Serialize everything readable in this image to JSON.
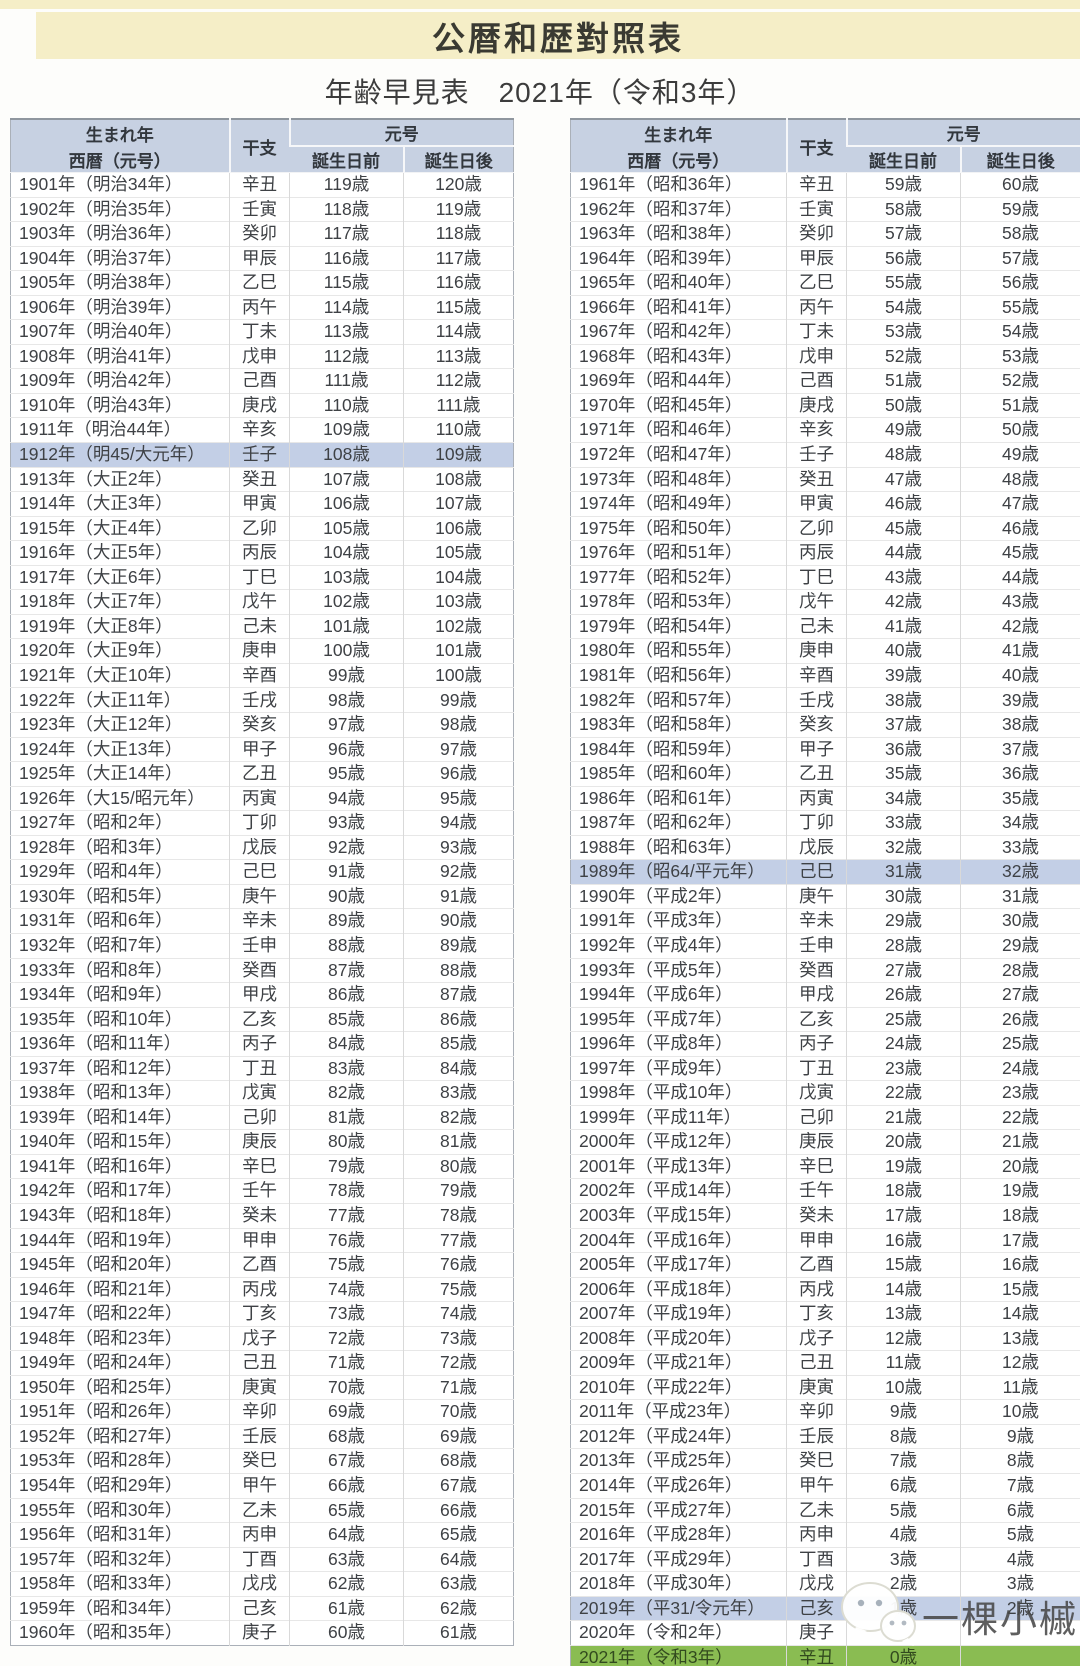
{
  "page": {
    "title": "公暦和歴對照表",
    "subtitle": "年齢早見表　2021年（令和3年）"
  },
  "headers": {
    "birth_year": "生まれ年",
    "seireki_gengo": "西暦（元号）",
    "eto": "干支",
    "gengo": "元号",
    "before_birthday": "誕生日前",
    "after_birthday": "誕生日後"
  },
  "colors": {
    "banner_cream": "#f5eec7",
    "header_blue": "#c7d1e2",
    "highlight_blue": "#c3cfe6",
    "highlight_green": "#8abc52"
  },
  "watermark": {
    "icon": "wechat-icon",
    "text": "一棵小槭"
  },
  "left_rows": [
    [
      "1901年（明治34年）",
      "辛丑",
      "119歳",
      "120歳"
    ],
    [
      "1902年（明治35年）",
      "壬寅",
      "118歳",
      "119歳"
    ],
    [
      "1903年（明治36年）",
      "癸卯",
      "117歳",
      "118歳"
    ],
    [
      "1904年（明治37年）",
      "甲辰",
      "116歳",
      "117歳"
    ],
    [
      "1905年（明治38年）",
      "乙巳",
      "115歳",
      "116歳"
    ],
    [
      "1906年（明治39年）",
      "丙午",
      "114歳",
      "115歳"
    ],
    [
      "1907年（明治40年）",
      "丁未",
      "113歳",
      "114歳"
    ],
    [
      "1908年（明治41年）",
      "戊申",
      "112歳",
      "113歳"
    ],
    [
      "1909年（明治42年）",
      "己酉",
      "111歳",
      "112歳"
    ],
    [
      "1910年（明治43年）",
      "庚戌",
      "110歳",
      "111歳"
    ],
    [
      "1911年（明治44年）",
      "辛亥",
      "109歳",
      "110歳"
    ],
    [
      "1912年（明45/大元年）",
      "壬子",
      "108歳",
      "109歳",
      "blue"
    ],
    [
      "1913年（大正2年）",
      "癸丑",
      "107歳",
      "108歳"
    ],
    [
      "1914年（大正3年）",
      "甲寅",
      "106歳",
      "107歳"
    ],
    [
      "1915年（大正4年）",
      "乙卯",
      "105歳",
      "106歳"
    ],
    [
      "1916年（大正5年）",
      "丙辰",
      "104歳",
      "105歳"
    ],
    [
      "1917年（大正6年）",
      "丁巳",
      "103歳",
      "104歳"
    ],
    [
      "1918年（大正7年）",
      "戊午",
      "102歳",
      "103歳"
    ],
    [
      "1919年（大正8年）",
      "己未",
      "101歳",
      "102歳"
    ],
    [
      "1920年（大正9年）",
      "庚申",
      "100歳",
      "101歳"
    ],
    [
      "1921年（大正10年）",
      "辛酉",
      "99歳",
      "100歳"
    ],
    [
      "1922年（大正11年）",
      "壬戌",
      "98歳",
      "99歳"
    ],
    [
      "1923年（大正12年）",
      "癸亥",
      "97歳",
      "98歳"
    ],
    [
      "1924年（大正13年）",
      "甲子",
      "96歳",
      "97歳"
    ],
    [
      "1925年（大正14年）",
      "乙丑",
      "95歳",
      "96歳"
    ],
    [
      "1926年（大15/昭元年）",
      "丙寅",
      "94歳",
      "95歳"
    ],
    [
      "1927年（昭和2年）",
      "丁卯",
      "93歳",
      "94歳"
    ],
    [
      "1928年（昭和3年）",
      "戊辰",
      "92歳",
      "93歳"
    ],
    [
      "1929年（昭和4年）",
      "己巳",
      "91歳",
      "92歳"
    ],
    [
      "1930年（昭和5年）",
      "庚午",
      "90歳",
      "91歳"
    ],
    [
      "1931年（昭和6年）",
      "辛未",
      "89歳",
      "90歳"
    ],
    [
      "1932年（昭和7年）",
      "壬申",
      "88歳",
      "89歳"
    ],
    [
      "1933年（昭和8年）",
      "癸酉",
      "87歳",
      "88歳"
    ],
    [
      "1934年（昭和9年）",
      "甲戌",
      "86歳",
      "87歳"
    ],
    [
      "1935年（昭和10年）",
      "乙亥",
      "85歳",
      "86歳"
    ],
    [
      "1936年（昭和11年）",
      "丙子",
      "84歳",
      "85歳"
    ],
    [
      "1937年（昭和12年）",
      "丁丑",
      "83歳",
      "84歳"
    ],
    [
      "1938年（昭和13年）",
      "戊寅",
      "82歳",
      "83歳"
    ],
    [
      "1939年（昭和14年）",
      "己卯",
      "81歳",
      "82歳"
    ],
    [
      "1940年（昭和15年）",
      "庚辰",
      "80歳",
      "81歳"
    ],
    [
      "1941年（昭和16年）",
      "辛巳",
      "79歳",
      "80歳"
    ],
    [
      "1942年（昭和17年）",
      "壬午",
      "78歳",
      "79歳"
    ],
    [
      "1943年（昭和18年）",
      "癸未",
      "77歳",
      "78歳"
    ],
    [
      "1944年（昭和19年）",
      "甲申",
      "76歳",
      "77歳"
    ],
    [
      "1945年（昭和20年）",
      "乙酉",
      "75歳",
      "76歳"
    ],
    [
      "1946年（昭和21年）",
      "丙戌",
      "74歳",
      "75歳"
    ],
    [
      "1947年（昭和22年）",
      "丁亥",
      "73歳",
      "74歳"
    ],
    [
      "1948年（昭和23年）",
      "戊子",
      "72歳",
      "73歳"
    ],
    [
      "1949年（昭和24年）",
      "己丑",
      "71歳",
      "72歳"
    ],
    [
      "1950年（昭和25年）",
      "庚寅",
      "70歳",
      "71歳"
    ],
    [
      "1951年（昭和26年）",
      "辛卯",
      "69歳",
      "70歳"
    ],
    [
      "1952年（昭和27年）",
      "壬辰",
      "68歳",
      "69歳"
    ],
    [
      "1953年（昭和28年）",
      "癸巳",
      "67歳",
      "68歳"
    ],
    [
      "1954年（昭和29年）",
      "甲午",
      "66歳",
      "67歳"
    ],
    [
      "1955年（昭和30年）",
      "乙未",
      "65歳",
      "66歳"
    ],
    [
      "1956年（昭和31年）",
      "丙申",
      "64歳",
      "65歳"
    ],
    [
      "1957年（昭和32年）",
      "丁酉",
      "63歳",
      "64歳"
    ],
    [
      "1958年（昭和33年）",
      "戊戌",
      "62歳",
      "63歳"
    ],
    [
      "1959年（昭和34年）",
      "己亥",
      "61歳",
      "62歳"
    ],
    [
      "1960年（昭和35年）",
      "庚子",
      "60歳",
      "61歳"
    ]
  ],
  "right_rows": [
    [
      "1961年（昭和36年）",
      "辛丑",
      "59歳",
      "60歳"
    ],
    [
      "1962年（昭和37年）",
      "壬寅",
      "58歳",
      "59歳"
    ],
    [
      "1963年（昭和38年）",
      "癸卯",
      "57歳",
      "58歳"
    ],
    [
      "1964年（昭和39年）",
      "甲辰",
      "56歳",
      "57歳"
    ],
    [
      "1965年（昭和40年）",
      "乙巳",
      "55歳",
      "56歳"
    ],
    [
      "1966年（昭和41年）",
      "丙午",
      "54歳",
      "55歳"
    ],
    [
      "1967年（昭和42年）",
      "丁未",
      "53歳",
      "54歳"
    ],
    [
      "1968年（昭和43年）",
      "戊申",
      "52歳",
      "53歳"
    ],
    [
      "1969年（昭和44年）",
      "己酉",
      "51歳",
      "52歳"
    ],
    [
      "1970年（昭和45年）",
      "庚戌",
      "50歳",
      "51歳"
    ],
    [
      "1971年（昭和46年）",
      "辛亥",
      "49歳",
      "50歳"
    ],
    [
      "1972年（昭和47年）",
      "壬子",
      "48歳",
      "49歳"
    ],
    [
      "1973年（昭和48年）",
      "癸丑",
      "47歳",
      "48歳"
    ],
    [
      "1974年（昭和49年）",
      "甲寅",
      "46歳",
      "47歳"
    ],
    [
      "1975年（昭和50年）",
      "乙卯",
      "45歳",
      "46歳"
    ],
    [
      "1976年（昭和51年）",
      "丙辰",
      "44歳",
      "45歳"
    ],
    [
      "1977年（昭和52年）",
      "丁巳",
      "43歳",
      "44歳"
    ],
    [
      "1978年（昭和53年）",
      "戊午",
      "42歳",
      "43歳"
    ],
    [
      "1979年（昭和54年）",
      "己未",
      "41歳",
      "42歳"
    ],
    [
      "1980年（昭和55年）",
      "庚申",
      "40歳",
      "41歳"
    ],
    [
      "1981年（昭和56年）",
      "辛酉",
      "39歳",
      "40歳"
    ],
    [
      "1982年（昭和57年）",
      "壬戌",
      "38歳",
      "39歳"
    ],
    [
      "1983年（昭和58年）",
      "癸亥",
      "37歳",
      "38歳"
    ],
    [
      "1984年（昭和59年）",
      "甲子",
      "36歳",
      "37歳"
    ],
    [
      "1985年（昭和60年）",
      "乙丑",
      "35歳",
      "36歳"
    ],
    [
      "1986年（昭和61年）",
      "丙寅",
      "34歳",
      "35歳"
    ],
    [
      "1987年（昭和62年）",
      "丁卯",
      "33歳",
      "34歳"
    ],
    [
      "1988年（昭和63年）",
      "戊辰",
      "32歳",
      "33歳"
    ],
    [
      "1989年（昭64/平元年）",
      "己巳",
      "31歳",
      "32歳",
      "blue"
    ],
    [
      "1990年（平成2年）",
      "庚午",
      "30歳",
      "31歳"
    ],
    [
      "1991年（平成3年）",
      "辛未",
      "29歳",
      "30歳"
    ],
    [
      "1992年（平成4年）",
      "壬申",
      "28歳",
      "29歳"
    ],
    [
      "1993年（平成5年）",
      "癸酉",
      "27歳",
      "28歳"
    ],
    [
      "1994年（平成6年）",
      "甲戌",
      "26歳",
      "27歳"
    ],
    [
      "1995年（平成7年）",
      "乙亥",
      "25歳",
      "26歳"
    ],
    [
      "1996年（平成8年）",
      "丙子",
      "24歳",
      "25歳"
    ],
    [
      "1997年（平成9年）",
      "丁丑",
      "23歳",
      "24歳"
    ],
    [
      "1998年（平成10年）",
      "戊寅",
      "22歳",
      "23歳"
    ],
    [
      "1999年（平成11年）",
      "己卯",
      "21歳",
      "22歳"
    ],
    [
      "2000年（平成12年）",
      "庚辰",
      "20歳",
      "21歳"
    ],
    [
      "2001年（平成13年）",
      "辛巳",
      "19歳",
      "20歳"
    ],
    [
      "2002年（平成14年）",
      "壬午",
      "18歳",
      "19歳"
    ],
    [
      "2003年（平成15年）",
      "癸未",
      "17歳",
      "18歳"
    ],
    [
      "2004年（平成16年）",
      "甲申",
      "16歳",
      "17歳"
    ],
    [
      "2005年（平成17年）",
      "乙酉",
      "15歳",
      "16歳"
    ],
    [
      "2006年（平成18年）",
      "丙戌",
      "14歳",
      "15歳"
    ],
    [
      "2007年（平成19年）",
      "丁亥",
      "13歳",
      "14歳"
    ],
    [
      "2008年（平成20年）",
      "戊子",
      "12歳",
      "13歳"
    ],
    [
      "2009年（平成21年）",
      "己丑",
      "11歳",
      "12歳"
    ],
    [
      "2010年（平成22年）",
      "庚寅",
      "10歳",
      "11歳"
    ],
    [
      "2011年（平成23年）",
      "辛卯",
      "9歳",
      "10歳"
    ],
    [
      "2012年（平成24年）",
      "壬辰",
      "8歳",
      "9歳"
    ],
    [
      "2013年（平成25年）",
      "癸巳",
      "7歳",
      "8歳"
    ],
    [
      "2014年（平成26年）",
      "甲午",
      "6歳",
      "7歳"
    ],
    [
      "2015年（平成27年）",
      "乙未",
      "5歳",
      "6歳"
    ],
    [
      "2016年（平成28年）",
      "丙申",
      "4歳",
      "5歳"
    ],
    [
      "2017年（平成29年）",
      "丁酉",
      "3歳",
      "4歳"
    ],
    [
      "2018年（平成30年）",
      "戊戌",
      "2歳",
      "3歳"
    ],
    [
      "2019年（平31/令元年）",
      "己亥",
      "1歳",
      "2歳",
      "blue"
    ],
    [
      "2020年（令和2年）",
      "庚子",
      "",
      ""
    ],
    [
      "2021年（令和3年）",
      "辛丑",
      "0歳",
      "",
      "green"
    ]
  ]
}
